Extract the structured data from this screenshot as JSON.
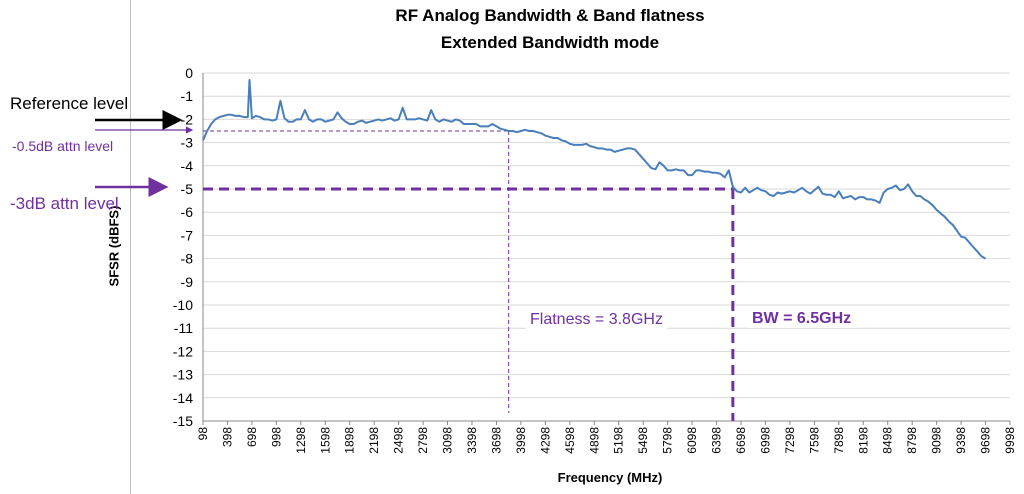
{
  "chart_data": {
    "type": "line",
    "title": "RF Analog Bandwidth & Band flatness",
    "subtitle": "Extended Bandwidth mode",
    "xlabel": "Frequency (MHz)",
    "ylabel": "SFSR (dBFS)",
    "ylim": [
      -15,
      0
    ],
    "yticks": [
      0,
      -1,
      -2,
      -3,
      -4,
      -5,
      -6,
      -7,
      -8,
      -9,
      -10,
      -11,
      -12,
      -13,
      -14,
      -15
    ],
    "xlim": [
      98,
      9998
    ],
    "xtick_labels": [
      "98",
      "398",
      "698",
      "998",
      "1298",
      "1598",
      "1898",
      "2198",
      "2498",
      "2798",
      "3098",
      "3398",
      "3698",
      "3998",
      "4298",
      "4598",
      "4898",
      "5198",
      "5498",
      "5798",
      "6098",
      "6398",
      "6698",
      "6998",
      "7298",
      "7598",
      "7898",
      "8198",
      "8498",
      "8798",
      "9098",
      "9398",
      "9698",
      "9998"
    ],
    "grid": true,
    "legend": "none",
    "series": [
      {
        "color": "#4a7ebb",
        "points": [
          [
            98,
            -2.9
          ],
          [
            148,
            -2.5
          ],
          [
            198,
            -2.2
          ],
          [
            248,
            -2.0
          ],
          [
            298,
            -1.9
          ],
          [
            348,
            -1.85
          ],
          [
            398,
            -1.8
          ],
          [
            448,
            -1.8
          ],
          [
            498,
            -1.85
          ],
          [
            548,
            -1.85
          ],
          [
            598,
            -1.9
          ],
          [
            648,
            -1.9
          ],
          [
            668,
            -0.3
          ],
          [
            698,
            -1.95
          ],
          [
            748,
            -1.85
          ],
          [
            798,
            -1.9
          ],
          [
            848,
            -2.0
          ],
          [
            898,
            -2.0
          ],
          [
            948,
            -2.05
          ],
          [
            998,
            -2.0
          ],
          [
            1048,
            -1.2
          ],
          [
            1098,
            -1.95
          ],
          [
            1148,
            -2.1
          ],
          [
            1198,
            -2.1
          ],
          [
            1248,
            -2.0
          ],
          [
            1298,
            -2.0
          ],
          [
            1348,
            -1.6
          ],
          [
            1398,
            -2.0
          ],
          [
            1448,
            -2.1
          ],
          [
            1498,
            -2.0
          ],
          [
            1548,
            -2.0
          ],
          [
            1598,
            -2.1
          ],
          [
            1648,
            -2.05
          ],
          [
            1698,
            -2.0
          ],
          [
            1748,
            -1.7
          ],
          [
            1798,
            -1.95
          ],
          [
            1848,
            -2.1
          ],
          [
            1898,
            -2.2
          ],
          [
            1948,
            -2.2
          ],
          [
            1998,
            -2.1
          ],
          [
            2048,
            -2.05
          ],
          [
            2098,
            -2.15
          ],
          [
            2148,
            -2.1
          ],
          [
            2198,
            -2.05
          ],
          [
            2248,
            -2.0
          ],
          [
            2298,
            -2.05
          ],
          [
            2348,
            -2.0
          ],
          [
            2398,
            -1.95
          ],
          [
            2448,
            -2.05
          ],
          [
            2498,
            -2.0
          ],
          [
            2548,
            -1.5
          ],
          [
            2598,
            -2.0
          ],
          [
            2648,
            -2.0
          ],
          [
            2698,
            -2.0
          ],
          [
            2748,
            -1.95
          ],
          [
            2798,
            -2.0
          ],
          [
            2848,
            -2.05
          ],
          [
            2898,
            -1.6
          ],
          [
            2948,
            -2.0
          ],
          [
            2998,
            -2.1
          ],
          [
            3048,
            -2.0
          ],
          [
            3098,
            -2.05
          ],
          [
            3148,
            -2.1
          ],
          [
            3198,
            -2.0
          ],
          [
            3248,
            -2.05
          ],
          [
            3298,
            -2.2
          ],
          [
            3348,
            -2.2
          ],
          [
            3398,
            -2.2
          ],
          [
            3448,
            -2.2
          ],
          [
            3498,
            -2.3
          ],
          [
            3548,
            -2.3
          ],
          [
            3598,
            -2.3
          ],
          [
            3648,
            -2.2
          ],
          [
            3698,
            -2.3
          ],
          [
            3748,
            -2.4
          ],
          [
            3798,
            -2.45
          ],
          [
            3848,
            -2.5
          ],
          [
            3898,
            -2.5
          ],
          [
            3948,
            -2.55
          ],
          [
            3998,
            -2.5
          ],
          [
            4048,
            -2.45
          ],
          [
            4098,
            -2.5
          ],
          [
            4148,
            -2.5
          ],
          [
            4198,
            -2.55
          ],
          [
            4248,
            -2.6
          ],
          [
            4298,
            -2.7
          ],
          [
            4348,
            -2.75
          ],
          [
            4398,
            -2.8
          ],
          [
            4448,
            -2.8
          ],
          [
            4498,
            -2.9
          ],
          [
            4548,
            -2.95
          ],
          [
            4598,
            -3.05
          ],
          [
            4648,
            -3.1
          ],
          [
            4698,
            -3.1
          ],
          [
            4748,
            -3.1
          ],
          [
            4798,
            -3.05
          ],
          [
            4848,
            -3.15
          ],
          [
            4898,
            -3.2
          ],
          [
            4948,
            -3.25
          ],
          [
            4998,
            -3.25
          ],
          [
            5048,
            -3.3
          ],
          [
            5098,
            -3.3
          ],
          [
            5148,
            -3.4
          ],
          [
            5198,
            -3.35
          ],
          [
            5248,
            -3.3
          ],
          [
            5298,
            -3.25
          ],
          [
            5348,
            -3.25
          ],
          [
            5398,
            -3.3
          ],
          [
            5448,
            -3.5
          ],
          [
            5498,
            -3.7
          ],
          [
            5548,
            -3.9
          ],
          [
            5598,
            -4.1
          ],
          [
            5648,
            -4.15
          ],
          [
            5698,
            -3.85
          ],
          [
            5748,
            -4.0
          ],
          [
            5798,
            -4.2
          ],
          [
            5848,
            -4.2
          ],
          [
            5898,
            -4.15
          ],
          [
            5948,
            -4.2
          ],
          [
            5998,
            -4.2
          ],
          [
            6048,
            -4.4
          ],
          [
            6098,
            -4.4
          ],
          [
            6148,
            -4.2
          ],
          [
            6198,
            -4.2
          ],
          [
            6248,
            -4.25
          ],
          [
            6298,
            -4.25
          ],
          [
            6348,
            -4.3
          ],
          [
            6398,
            -4.3
          ],
          [
            6448,
            -4.35
          ],
          [
            6498,
            -4.5
          ],
          [
            6548,
            -4.2
          ],
          [
            6598,
            -4.9
          ],
          [
            6648,
            -5.1
          ],
          [
            6698,
            -5.15
          ],
          [
            6748,
            -4.95
          ],
          [
            6798,
            -5.15
          ],
          [
            6848,
            -5.05
          ],
          [
            6898,
            -4.95
          ],
          [
            6948,
            -5.05
          ],
          [
            6998,
            -5.1
          ],
          [
            7048,
            -5.25
          ],
          [
            7098,
            -5.3
          ],
          [
            7148,
            -5.15
          ],
          [
            7198,
            -5.2
          ],
          [
            7248,
            -5.15
          ],
          [
            7298,
            -5.1
          ],
          [
            7348,
            -5.15
          ],
          [
            7398,
            -5.05
          ],
          [
            7448,
            -4.95
          ],
          [
            7498,
            -5.1
          ],
          [
            7548,
            -5.2
          ],
          [
            7598,
            -5.05
          ],
          [
            7648,
            -4.9
          ],
          [
            7698,
            -5.2
          ],
          [
            7748,
            -5.25
          ],
          [
            7798,
            -5.25
          ],
          [
            7848,
            -5.35
          ],
          [
            7898,
            -5.1
          ],
          [
            7948,
            -5.4
          ],
          [
            7998,
            -5.35
          ],
          [
            8048,
            -5.3
          ],
          [
            8098,
            -5.45
          ],
          [
            8148,
            -5.35
          ],
          [
            8198,
            -5.35
          ],
          [
            8248,
            -5.45
          ],
          [
            8298,
            -5.45
          ],
          [
            8348,
            -5.5
          ],
          [
            8398,
            -5.6
          ],
          [
            8448,
            -5.15
          ],
          [
            8498,
            -5.0
          ],
          [
            8548,
            -4.95
          ],
          [
            8598,
            -4.85
          ],
          [
            8648,
            -5.05
          ],
          [
            8698,
            -5.0
          ],
          [
            8748,
            -4.8
          ],
          [
            8798,
            -5.1
          ],
          [
            8848,
            -5.3
          ],
          [
            8898,
            -5.3
          ],
          [
            8948,
            -5.45
          ],
          [
            8998,
            -5.55
          ],
          [
            9048,
            -5.7
          ],
          [
            9098,
            -5.9
          ],
          [
            9148,
            -6.05
          ],
          [
            9198,
            -6.2
          ],
          [
            9248,
            -6.4
          ],
          [
            9298,
            -6.55
          ],
          [
            9348,
            -6.8
          ],
          [
            9398,
            -7.05
          ],
          [
            9448,
            -7.1
          ],
          [
            9498,
            -7.3
          ],
          [
            9548,
            -7.5
          ],
          [
            9598,
            -7.7
          ],
          [
            9648,
            -7.9
          ],
          [
            9698,
            -8.0
          ]
        ]
      }
    ],
    "reference_lines": {
      "attn_05_level": -2.5,
      "attn_3_level": -5,
      "flatness_freq": 3848,
      "bw_freq": 6598,
      "color": "#7030a0"
    },
    "annotations": {
      "reference_level": "Reference level",
      "attn_05": "-0.5dB attn level",
      "attn_3": "-3dB attn level",
      "flatness": "Flatness = 3.8GHz",
      "bw": "BW = 6.5GHz"
    }
  },
  "colors": {
    "line": "#4a7ebb",
    "annotation": "#7030a0",
    "grid": "#d9d9d9",
    "axis": "#888888"
  }
}
